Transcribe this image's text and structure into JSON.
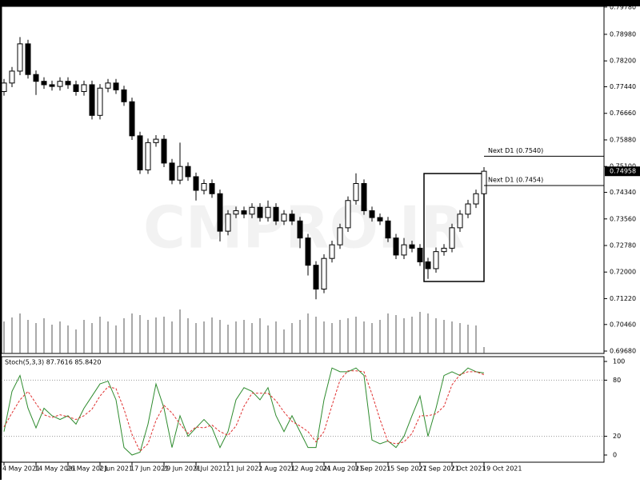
{
  "chart_data": [
    {
      "type": "candlestick",
      "watermark": "CMPRO.IR",
      "last_price": 0.74958,
      "ylim": [
        0.6961,
        0.798
      ],
      "yticks": [
        {
          "value": 0.7978,
          "label": "0.79780"
        },
        {
          "value": 0.7898,
          "label": "0.78980"
        },
        {
          "value": 0.782,
          "label": "0.78200"
        },
        {
          "value": 0.7744,
          "label": "0.77440"
        },
        {
          "value": 0.7666,
          "label": "0.76660"
        },
        {
          "value": 0.7588,
          "label": "0.75880"
        },
        {
          "value": 0.751,
          "label": "0.75100"
        },
        {
          "value": 0.7434,
          "label": "0.74340"
        },
        {
          "value": 0.7356,
          "label": "0.73560"
        },
        {
          "value": 0.7278,
          "label": "0.72780"
        },
        {
          "value": 0.72,
          "label": "0.72000"
        },
        {
          "value": 0.7122,
          "label": "0.71220"
        },
        {
          "value": 0.7046,
          "label": "0.70460"
        },
        {
          "value": 0.6968,
          "label": "0.69680"
        }
      ],
      "annotations": [
        {
          "label": "Next D1 (0.7540)",
          "value": 0.754
        },
        {
          "label": "Next D1 (0.7454)",
          "value": 0.7454
        }
      ],
      "open": [
        0.773,
        0.7755,
        0.779,
        0.787,
        0.778,
        0.776,
        0.775,
        0.7745,
        0.776,
        0.775,
        0.773,
        0.775,
        0.766,
        0.774,
        0.7755,
        0.7735,
        0.77,
        0.76,
        0.75,
        0.758,
        0.759,
        0.752,
        0.747,
        0.751,
        0.748,
        0.744,
        0.746,
        0.743,
        0.732,
        0.737,
        0.738,
        0.737,
        0.739,
        0.736,
        0.739,
        0.735,
        0.737,
        0.735,
        0.73,
        0.722,
        0.715,
        0.724,
        0.728,
        0.733,
        0.741,
        0.746,
        0.738,
        0.736,
        0.735,
        0.73,
        0.725,
        0.728,
        0.727,
        0.723,
        0.721,
        0.726,
        0.727,
        0.733,
        0.737,
        0.74,
        0.743
      ],
      "high": [
        0.7767,
        0.7802,
        0.789,
        0.7882,
        0.7792,
        0.7772,
        0.7762,
        0.7772,
        0.7772,
        0.7762,
        0.7762,
        0.7762,
        0.7752,
        0.7767,
        0.7767,
        0.7747,
        0.7712,
        0.7612,
        0.7592,
        0.7602,
        0.7602,
        0.7532,
        0.758,
        0.7522,
        0.7492,
        0.7472,
        0.7472,
        0.7442,
        0.7382,
        0.7392,
        0.7392,
        0.7402,
        0.7402,
        0.741,
        0.7402,
        0.7382,
        0.7382,
        0.7362,
        0.7312,
        0.7232,
        0.7252,
        0.7292,
        0.7342,
        0.7422,
        0.749,
        0.7472,
        0.7392,
        0.7372,
        0.7362,
        0.7312,
        0.73,
        0.7292,
        0.7282,
        0.7242,
        0.7272,
        0.7282,
        0.7342,
        0.7382,
        0.7412,
        0.7442,
        0.7508
      ],
      "low": [
        0.7718,
        0.7743,
        0.7778,
        0.7768,
        0.772,
        0.7738,
        0.7733,
        0.7733,
        0.7738,
        0.7718,
        0.7718,
        0.7648,
        0.7648,
        0.7728,
        0.7723,
        0.7688,
        0.7588,
        0.7488,
        0.7488,
        0.7568,
        0.7508,
        0.7458,
        0.7458,
        0.7468,
        0.741,
        0.7428,
        0.7418,
        0.729,
        0.7308,
        0.7358,
        0.7358,
        0.7358,
        0.7348,
        0.7348,
        0.7338,
        0.7338,
        0.7338,
        0.727,
        0.719,
        0.712,
        0.7138,
        0.7228,
        0.7268,
        0.7318,
        0.7398,
        0.7368,
        0.7348,
        0.7338,
        0.7288,
        0.7238,
        0.7238,
        0.7258,
        0.7218,
        0.718,
        0.7198,
        0.7248,
        0.7258,
        0.7318,
        0.7358,
        0.7388,
        0.7418
      ],
      "close": [
        0.7755,
        0.779,
        0.787,
        0.778,
        0.776,
        0.775,
        0.7745,
        0.776,
        0.775,
        0.773,
        0.775,
        0.766,
        0.774,
        0.7755,
        0.7735,
        0.77,
        0.76,
        0.75,
        0.758,
        0.759,
        0.752,
        0.747,
        0.751,
        0.748,
        0.744,
        0.746,
        0.743,
        0.732,
        0.737,
        0.738,
        0.737,
        0.739,
        0.736,
        0.739,
        0.735,
        0.737,
        0.735,
        0.73,
        0.722,
        0.715,
        0.724,
        0.728,
        0.733,
        0.741,
        0.746,
        0.738,
        0.736,
        0.735,
        0.73,
        0.725,
        0.728,
        0.727,
        0.723,
        0.721,
        0.726,
        0.727,
        0.733,
        0.737,
        0.74,
        0.743,
        0.7496
      ],
      "volume": [
        40,
        45,
        50,
        42,
        38,
        44,
        36,
        40,
        35,
        30,
        42,
        38,
        46,
        40,
        35,
        44,
        50,
        48,
        42,
        45,
        46,
        40,
        55,
        44,
        38,
        40,
        45,
        42,
        36,
        40,
        42,
        38,
        44,
        35,
        40,
        30,
        38,
        42,
        50,
        46,
        40,
        38,
        42,
        44,
        46,
        40,
        38,
        42,
        50,
        48,
        44,
        46,
        52,
        50,
        44,
        42,
        40,
        38,
        36,
        35,
        8
      ]
    },
    {
      "type": "line",
      "title": "Stoch(5,3,3) 87.7616 85.8420",
      "ylim": [
        0,
        100
      ],
      "yticks": [
        100,
        80,
        20,
        0
      ],
      "levels": [
        80,
        20
      ],
      "categories": [
        "4 May 2021",
        null,
        null,
        null,
        "14 May 2021",
        null,
        null,
        null,
        "26 May 2021",
        null,
        null,
        null,
        "7 Jun 2021",
        null,
        null,
        null,
        "17 Jun 2021",
        null,
        null,
        null,
        "29 Jun 2021",
        null,
        null,
        null,
        "9 Jul 2021",
        null,
        null,
        null,
        "21 Jul 2021",
        null,
        null,
        null,
        "2 Aug 2021",
        null,
        null,
        null,
        "12 Aug 2021",
        null,
        null,
        null,
        "24 Aug 2021",
        null,
        null,
        null,
        "3 Sep 2021",
        null,
        null,
        null,
        "15 Sep 2021",
        null,
        null,
        null,
        "27 Sep 2021",
        null,
        null,
        null,
        "7 Oct 2021",
        null,
        null,
        null,
        "19 Oct 2021"
      ],
      "series": [
        {
          "color": "#2e8b2e",
          "values": [
            25,
            68,
            85,
            50,
            29,
            50,
            42,
            38,
            42,
            33,
            50,
            63,
            76,
            79,
            59,
            8,
            0,
            3,
            33,
            76,
            50,
            8,
            42,
            20,
            29,
            38,
            29,
            8,
            25,
            59,
            72,
            68,
            59,
            72,
            42,
            25,
            42,
            25,
            8,
            8,
            59,
            93,
            89,
            89,
            93,
            85,
            16,
            12,
            15,
            8,
            20,
            42,
            63,
            20,
            50,
            85,
            89,
            85,
            93,
            89,
            87.7616
          ]
        },
        {
          "color": "#e03030",
          "values": [
            30,
            45,
            59,
            68,
            55,
            43,
            40,
            43,
            41,
            38,
            42,
            49,
            63,
            73,
            71,
            49,
            22,
            4,
            12,
            37,
            53,
            45,
            33,
            23,
            30,
            29,
            32,
            25,
            21,
            31,
            52,
            66,
            66,
            66,
            58,
            46,
            36,
            31,
            25,
            14,
            25,
            53,
            80,
            90,
            90,
            89,
            65,
            38,
            14,
            12,
            14,
            23,
            42,
            42,
            44,
            52,
            75,
            86,
            89,
            89,
            85.842
          ]
        }
      ]
    }
  ]
}
